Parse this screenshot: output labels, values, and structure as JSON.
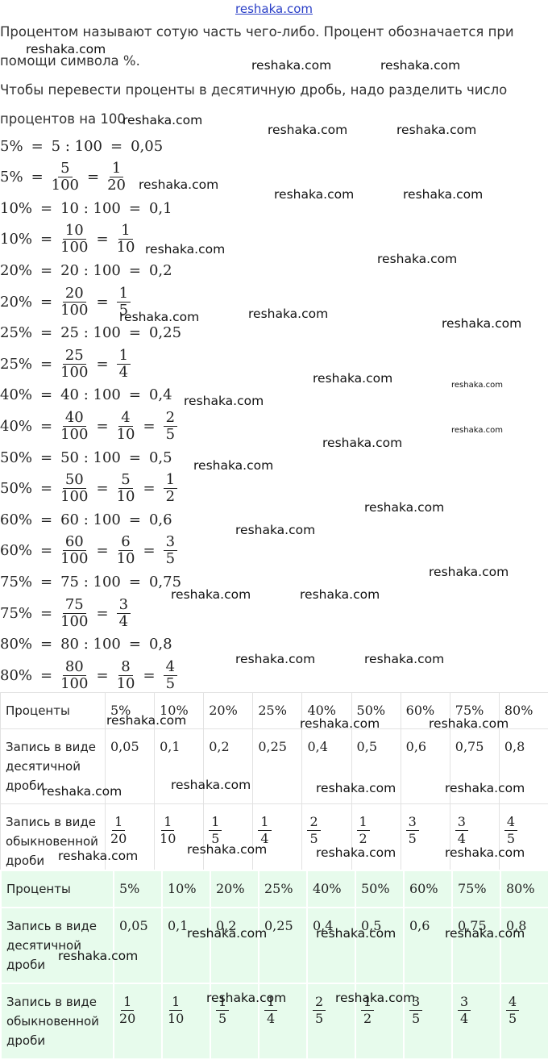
{
  "header": {
    "site": "reshaka.com"
  },
  "intro": [
    "Процентом называют сотую часть чего-либо. Процент обозначается при помощи символа %.",
    "Чтобы перевести проценты в десятичную дробь, надо разделить число процентов на 100"
  ],
  "formulas": [
    [
      "5%",
      "=",
      "5 : 100",
      "=",
      "0,05"
    ],
    [
      "5%",
      "=",
      {
        "num": "5",
        "den": "100"
      },
      "=",
      {
        "num": "1",
        "den": "20"
      }
    ],
    [
      "10%",
      "=",
      "10 : 100",
      "=",
      "0,1"
    ],
    [
      "10%",
      "=",
      {
        "num": "10",
        "den": "100"
      },
      "=",
      {
        "num": "1",
        "den": "10"
      }
    ],
    [
      "20%",
      "=",
      "20 : 100",
      "=",
      "0,2"
    ],
    [
      "20%",
      "=",
      {
        "num": "20",
        "den": "100"
      },
      "=",
      {
        "num": "1",
        "den": "5"
      }
    ],
    [
      "25%",
      "=",
      "25 : 100",
      "=",
      "0,25"
    ],
    [
      "25%",
      "=",
      {
        "num": "25",
        "den": "100"
      },
      "=",
      {
        "num": "1",
        "den": "4"
      }
    ],
    [
      "40%",
      "=",
      "40 : 100",
      "=",
      "0,4"
    ],
    [
      "40%",
      "=",
      {
        "num": "40",
        "den": "100"
      },
      "=",
      {
        "num": "4",
        "den": "10"
      },
      "=",
      {
        "num": "2",
        "den": "5"
      }
    ],
    [
      "50%",
      "=",
      "50 : 100",
      "=",
      "0,5"
    ],
    [
      "50%",
      "=",
      {
        "num": "50",
        "den": "100"
      },
      "=",
      {
        "num": "5",
        "den": "10"
      },
      "=",
      {
        "num": "1",
        "den": "2"
      }
    ],
    [
      "60%",
      "=",
      "60 : 100",
      "=",
      "0,6"
    ],
    [
      "60%",
      "=",
      {
        "num": "60",
        "den": "100"
      },
      "=",
      {
        "num": "6",
        "den": "10"
      },
      "=",
      {
        "num": "3",
        "den": "5"
      }
    ],
    [
      "75%",
      "=",
      "75 : 100",
      "=",
      "0,75"
    ],
    [
      "75%",
      "=",
      {
        "num": "75",
        "den": "100"
      },
      "=",
      {
        "num": "3",
        "den": "4"
      }
    ],
    [
      "80%",
      "=",
      "80 : 100",
      "=",
      "0,8"
    ],
    [
      "80%",
      "=",
      {
        "num": "80",
        "den": "100"
      },
      "=",
      {
        "num": "8",
        "den": "10"
      },
      "=",
      {
        "num": "4",
        "den": "5"
      }
    ]
  ],
  "tables": [
    {
      "rows": [
        [
          "Проценты",
          "5%",
          "10%",
          "20%",
          "25%",
          "40%",
          "50%",
          "60%",
          "75%",
          "80%"
        ],
        [
          "Запись в виде десятичной дроби",
          "0,05",
          "0,1",
          "0,2",
          "0,25",
          "0,4",
          "0,5",
          "0,6",
          "0,75",
          "0,8"
        ],
        [
          "Запись в виде обыкновенной дроби",
          {
            "num": "1",
            "den": "20"
          },
          {
            "num": "1",
            "den": "10"
          },
          {
            "num": "1",
            "den": "5"
          },
          {
            "num": "1",
            "den": "4"
          },
          {
            "num": "2",
            "den": "5"
          },
          {
            "num": "1",
            "den": "2"
          },
          {
            "num": "3",
            "den": "5"
          },
          {
            "num": "3",
            "den": "4"
          },
          {
            "num": "4",
            "den": "5"
          }
        ]
      ]
    },
    {
      "rows": [
        [
          "Проценты",
          "5%",
          "10%",
          "20%",
          "25%",
          "40%",
          "50%",
          "60%",
          "75%",
          "80%"
        ],
        [
          "Запись в виде десятичной дроби",
          "0,05",
          "0,1",
          "0,2",
          "0,25",
          "0,4",
          "0,5",
          "0,6",
          "0,75",
          "0,8"
        ],
        [
          "Запись в виде обыкновенной дроби",
          {
            "num": "1",
            "den": "20"
          },
          {
            "num": "1",
            "den": "10"
          },
          {
            "num": "1",
            "den": "5"
          },
          {
            "num": "1",
            "den": "4"
          },
          {
            "num": "2",
            "den": "5"
          },
          {
            "num": "1",
            "den": "2"
          },
          {
            "num": "3",
            "den": "5"
          },
          {
            "num": "3",
            "den": "4"
          },
          {
            "num": "4",
            "den": "5"
          }
        ]
      ]
    }
  ],
  "watermarks": [
    "reshaka.com",
    "reshaka.com",
    "reshaka.com",
    "reshaka.com",
    "reshaka.com",
    "reshaka.com",
    "reshaka.com",
    "reshaka.com",
    "reshaka.com",
    "reshaka.com",
    "reshaka.com",
    "reshaka.com",
    "reshaka.com",
    "reshaka.com",
    "reshaka.com",
    "reshaka.com",
    "reshaka.com",
    "reshaka.com",
    "reshaka.com",
    "reshaka.com",
    "reshaka.com",
    "reshaka.com",
    "reshaka.com",
    "reshaka.com",
    "reshaka.com",
    "reshaka.com",
    "reshaka.com",
    "reshaka.com",
    "reshaka.com",
    "reshaka.com",
    "reshaka.com",
    "reshaka.com",
    "reshaka.com",
    "reshaka.com",
    "reshaka.com",
    "reshaka.com",
    "reshaka.com",
    "reshaka.com",
    "reshaka.com",
    "reshaka.com",
    "reshaka.com",
    "reshaka.com",
    "reshaka.com",
    "reshaka.com"
  ]
}
